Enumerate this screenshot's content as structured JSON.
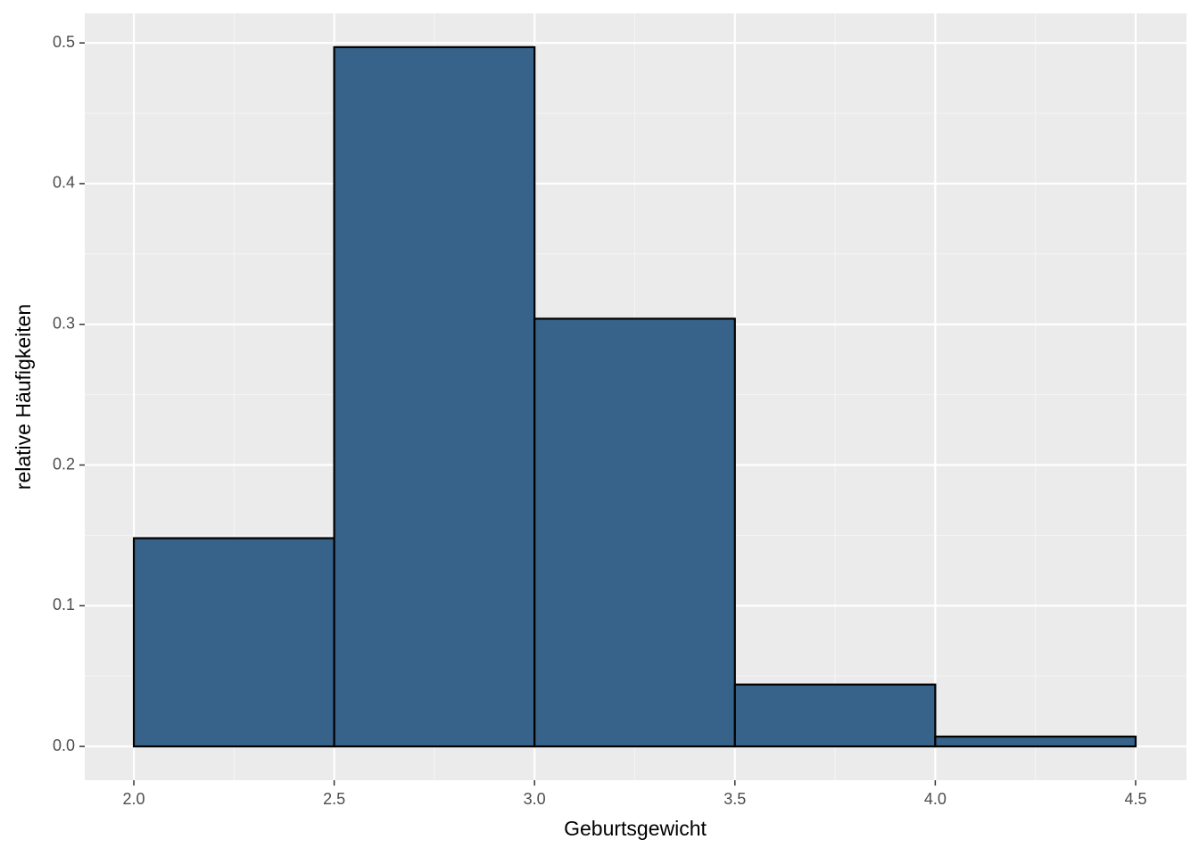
{
  "chart_data": {
    "type": "histogram",
    "xlabel": "Geburtsgewicht",
    "ylabel": "relative Häufigkeiten",
    "bins": [
      2.0,
      2.5,
      3.0,
      3.5,
      4.0,
      4.5
    ],
    "values": [
      0.148,
      0.497,
      0.304,
      0.044,
      0.007
    ],
    "color": "#376289",
    "edgecolor": "#000000",
    "xlim": [
      1.8775,
      4.627
    ],
    "ylim": [
      -0.024,
      0.521
    ],
    "xticks": [
      {
        "value": 2.0,
        "label": "2.0"
      },
      {
        "value": 2.5,
        "label": "2.5"
      },
      {
        "value": 3.0,
        "label": "3.0"
      },
      {
        "value": 3.5,
        "label": "3.5"
      },
      {
        "value": 4.0,
        "label": "4.0"
      },
      {
        "value": 4.5,
        "label": "4.5"
      }
    ],
    "yticks": [
      {
        "value": 0,
        "label": "0.0"
      },
      0.1,
      0.2,
      0.3,
      0.4,
      0.5
    ],
    "grid": true
  }
}
